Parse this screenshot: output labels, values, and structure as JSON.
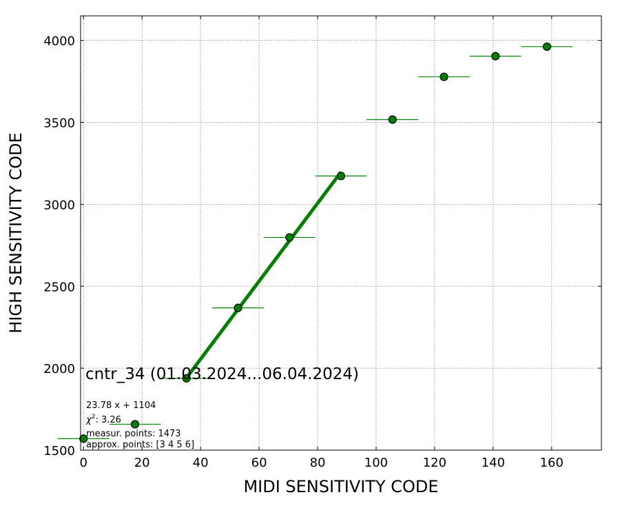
{
  "chart_data": {
    "type": "scatter",
    "xlabel": "MIDI SENSITIVITY CODE",
    "ylabel": "HIGH SENSITIVITY CODE",
    "xlim": [
      -1,
      177
    ],
    "ylim": [
      1500,
      4150
    ],
    "xticks": [
      0,
      20,
      40,
      60,
      80,
      100,
      120,
      140,
      160
    ],
    "yticks": [
      1500,
      2000,
      2500,
      3000,
      3500,
      4000
    ],
    "grid": true,
    "colors": {
      "marker": "#008000",
      "marker_edge": "#000000",
      "errorbar": "#008000",
      "fit_line": "#008000",
      "grid": "#808080"
    },
    "points": [
      {
        "x": 0.0,
        "y": 1570,
        "xerr": 8.8
      },
      {
        "x": 17.6,
        "y": 1658,
        "xerr": 8.8
      },
      {
        "x": 35.2,
        "y": 1938,
        "xerr": 8.8
      },
      {
        "x": 52.8,
        "y": 2368,
        "xerr": 8.8
      },
      {
        "x": 70.4,
        "y": 2798,
        "xerr": 8.8
      },
      {
        "x": 88.0,
        "y": 3173,
        "xerr": 8.8
      },
      {
        "x": 105.6,
        "y": 3517,
        "xerr": 8.8
      },
      {
        "x": 123.2,
        "y": 3778,
        "xerr": 8.8
      },
      {
        "x": 140.8,
        "y": 3904,
        "xerr": 8.8
      },
      {
        "x": 158.4,
        "y": 3962,
        "xerr": 8.8
      }
    ],
    "fit": {
      "slope": 23.78,
      "intercept": 1104,
      "x_range": [
        35.2,
        88.0
      ]
    },
    "annotations": {
      "title": "cntr_34 (01.03.2024...06.04.2024)",
      "equation": "23.78 x + 1104",
      "chi2_label": "χ",
      "chi2_sup": "2",
      "chi2_value": ": 3.26",
      "measur_points": "measur. points: 1473",
      "approx_points": "approx. points: [3 4 5 6]"
    }
  }
}
